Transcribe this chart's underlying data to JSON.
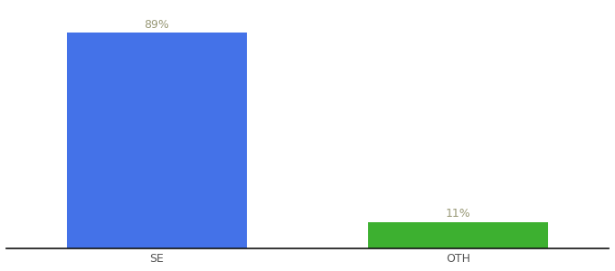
{
  "categories": [
    "SE",
    "OTH"
  ],
  "values": [
    89,
    11
  ],
  "bar_colors": [
    "#4472e8",
    "#3db030"
  ],
  "label_texts": [
    "89%",
    "11%"
  ],
  "background_color": "#ffffff",
  "ylim": [
    0,
    100
  ],
  "bar_width": 0.6,
  "label_fontsize": 9,
  "tick_fontsize": 9,
  "label_color": "#999977"
}
